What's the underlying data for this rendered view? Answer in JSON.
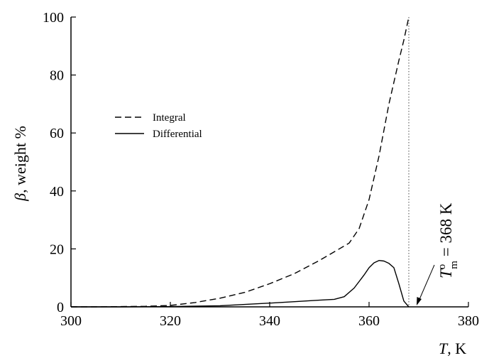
{
  "chart_data": {
    "type": "line",
    "xlabel_var": "T",
    "xlabel_unit": ", K",
    "ylabel_var": "β",
    "ylabel_unit": ", weight %",
    "xlim": [
      300,
      380
    ],
    "ylim": [
      0,
      100
    ],
    "xticks": [
      300,
      320,
      340,
      360,
      380
    ],
    "yticks": [
      0,
      20,
      40,
      60,
      80,
      100
    ],
    "grid": false,
    "legend_position": "upper-left",
    "series": [
      {
        "name": "Integral",
        "style": "dashed",
        "x": [
          300,
          305,
          310,
          315,
          320,
          325,
          330,
          335,
          340,
          345,
          350,
          353,
          356,
          358,
          360,
          362,
          364,
          366,
          367,
          368
        ],
        "y": [
          0,
          0,
          0.1,
          0.2,
          0.5,
          1.5,
          3,
          5,
          8,
          11.5,
          16,
          19,
          22,
          27,
          37,
          52,
          70,
          85,
          92,
          100
        ]
      },
      {
        "name": "Differential",
        "style": "solid",
        "x": [
          300,
          310,
          320,
          330,
          340,
          345,
          350,
          353,
          355,
          357,
          359,
          360,
          361,
          362,
          363,
          364,
          365,
          366,
          367,
          368
        ],
        "y": [
          0,
          0,
          0.1,
          0.4,
          1.3,
          1.8,
          2.3,
          2.6,
          3.5,
          6.5,
          11,
          13.5,
          15.2,
          16,
          15.8,
          15,
          13.5,
          8,
          2,
          0
        ]
      }
    ],
    "vline": {
      "x": 368,
      "style": "dotted"
    },
    "annotation": {
      "symbol": "T",
      "superscript": "o",
      "subscript": "m",
      "text": " = 368 K",
      "arrow_to": {
        "x": 368,
        "y": 0
      }
    }
  }
}
